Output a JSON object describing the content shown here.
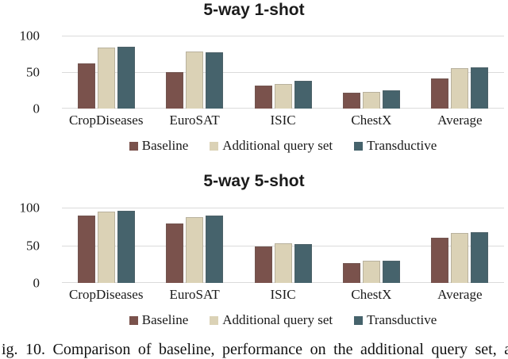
{
  "figure": {
    "caption": "ig. 10.  Comparison of baseline, performance on the additional query set, a"
  },
  "colors": {
    "baseline": "#7A524C",
    "additional_query_set": "#DBD2B6",
    "transductive": "#46636C",
    "gridline": "#DBDBDB"
  },
  "chart_data": [
    {
      "type": "bar",
      "title": "5-way 1-shot",
      "categories": [
        "CropDiseases",
        "EuroSAT",
        "ISIC",
        "ChestX",
        "Average"
      ],
      "series": [
        {
          "name": "Baseline",
          "color": "#7A524C",
          "values": [
            62,
            50,
            31,
            22,
            41
          ]
        },
        {
          "name": "Additional query set",
          "color": "#DBD2B6",
          "values": [
            84,
            78,
            34,
            23,
            55
          ]
        },
        {
          "name": "Transductive",
          "color": "#46636C",
          "values": [
            85,
            77,
            38,
            25,
            56
          ]
        }
      ],
      "yticks": [
        0,
        50,
        100
      ],
      "ylim": [
        0,
        100
      ],
      "grid": true,
      "legend_position": "bottom"
    },
    {
      "type": "bar",
      "title": "5-way 5-shot",
      "categories": [
        "CropDiseases",
        "EuroSAT",
        "ISIC",
        "ChestX",
        "Average"
      ],
      "series": [
        {
          "name": "Baseline",
          "color": "#7A524C",
          "values": [
            89,
            79,
            48,
            26,
            60
          ]
        },
        {
          "name": "Additional query set",
          "color": "#DBD2B6",
          "values": [
            95,
            87,
            53,
            30,
            66
          ]
        },
        {
          "name": "Transductive",
          "color": "#46636C",
          "values": [
            96,
            89,
            52,
            29,
            67
          ]
        }
      ],
      "yticks": [
        0,
        50,
        100
      ],
      "ylim": [
        0,
        100
      ],
      "grid": true,
      "legend_position": "bottom"
    }
  ]
}
